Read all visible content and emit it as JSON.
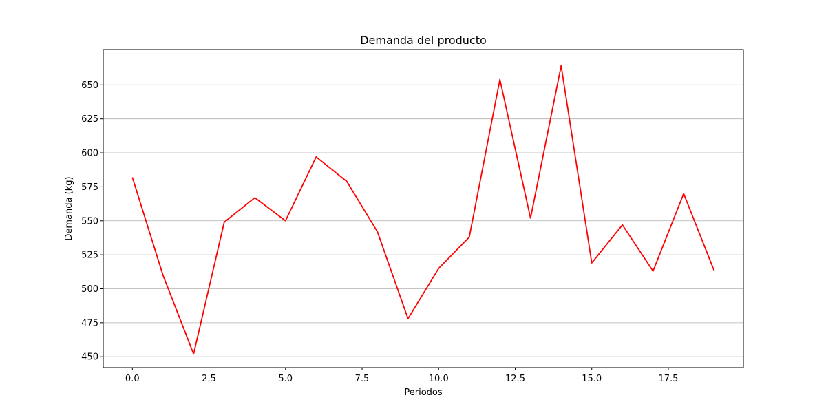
{
  "chart_data": {
    "type": "line",
    "title": "Demanda del producto",
    "xlabel": "Periodos",
    "ylabel": "Demanda (kg)",
    "xlim": [
      -0.95,
      19.95
    ],
    "ylim": [
      442,
      676
    ],
    "xticks": [
      0.0,
      2.5,
      5.0,
      7.5,
      10.0,
      12.5,
      15.0,
      17.5
    ],
    "xtick_labels": [
      "0.0",
      "2.5",
      "5.0",
      "7.5",
      "10.0",
      "12.5",
      "15.0",
      "17.5"
    ],
    "yticks": [
      450,
      475,
      500,
      525,
      550,
      575,
      600,
      625,
      650
    ],
    "ytick_labels": [
      "450",
      "475",
      "500",
      "525",
      "550",
      "575",
      "600",
      "625",
      "650"
    ],
    "grid": "y",
    "series": [
      {
        "color": "#ff0000",
        "x": [
          0,
          1,
          2,
          3,
          4,
          5,
          6,
          7,
          8,
          9,
          10,
          11,
          12,
          13,
          14,
          15,
          16,
          17,
          18,
          19
        ],
        "values": [
          582,
          510,
          452,
          549,
          567,
          550,
          597,
          579,
          542,
          478,
          515,
          538,
          654,
          552,
          664,
          519,
          547,
          513,
          570,
          513
        ]
      }
    ]
  }
}
